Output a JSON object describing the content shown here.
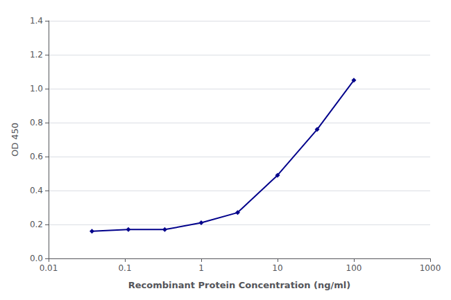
{
  "chart_data": {
    "type": "line",
    "x": [
      0.037,
      0.111,
      0.333,
      1.0,
      3.0,
      10.0,
      33.0,
      100.0
    ],
    "values": [
      0.16,
      0.17,
      0.17,
      0.21,
      0.27,
      0.49,
      0.76,
      1.05
    ],
    "color": "#00008B",
    "marker": "diamond",
    "line_style": "solid",
    "xlabel": "Recombinant Protein Concentration (ng/ml)",
    "ylabel": "OD 450",
    "log": "x",
    "xlim": [
      0.01,
      1000
    ],
    "ylim": [
      0.0,
      1.4
    ],
    "xticks": [
      0.01,
      0.1,
      1,
      10,
      100,
      1000
    ],
    "yticks": [
      {
        "value": 0.0,
        "label": "0.0"
      },
      0.2,
      0.4,
      0.6,
      0.8,
      {
        "value": 1.0,
        "label": "1.0"
      },
      1.2,
      1.4
    ],
    "grid": true
  }
}
